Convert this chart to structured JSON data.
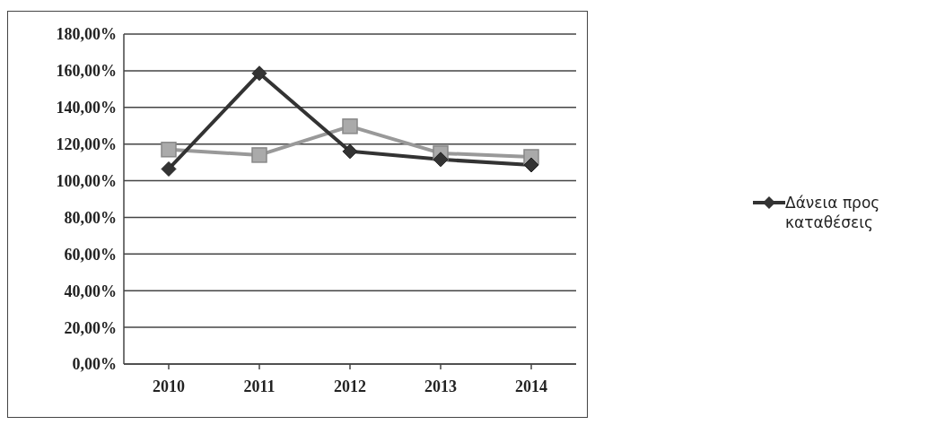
{
  "chart_data": {
    "type": "line",
    "categories": [
      "2010",
      "2011",
      "2012",
      "2013",
      "2014"
    ],
    "series": [
      {
        "name": "Δάνεια προς καταθέσεις",
        "color": "#333333",
        "marker": "diamond",
        "values": [
          106.4,
          158.6,
          116,
          111.6,
          108.6
        ]
      },
      {
        "color": "#999999",
        "marker": "square",
        "values": [
          117,
          114,
          129.7,
          115,
          113
        ]
      }
    ],
    "ylim": [
      0,
      180
    ],
    "yticks": [
      {
        "value": 0,
        "label": "0,00%"
      },
      {
        "value": 20,
        "label": "20,00%"
      },
      {
        "value": 40,
        "label": "40,00%"
      },
      {
        "value": 60,
        "label": "60,00%"
      },
      {
        "value": 80,
        "label": "80,00%"
      },
      {
        "value": 100,
        "label": "100,00%"
      },
      {
        "value": 120,
        "label": "120,00%"
      },
      {
        "value": 140,
        "label": "140,00%"
      },
      {
        "value": 160,
        "label": "160,00%"
      },
      {
        "value": 180,
        "label": "180,00%"
      }
    ],
    "grid": "y",
    "legend": "right",
    "line_style": "solid"
  }
}
